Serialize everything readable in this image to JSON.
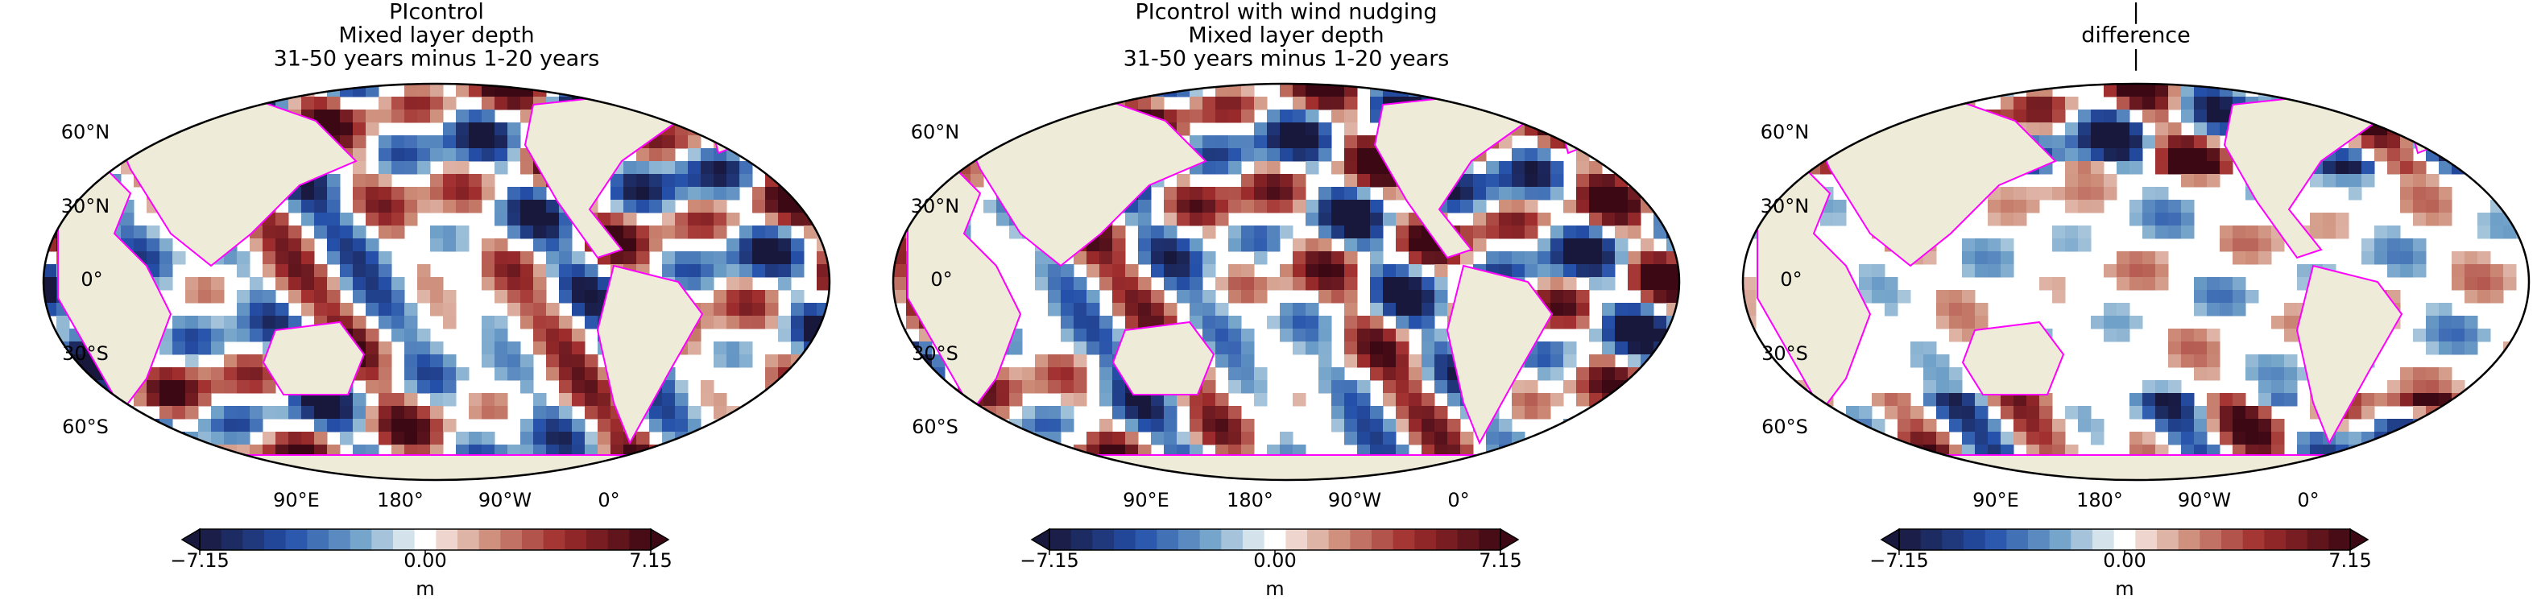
{
  "panels": [
    {
      "title": [
        "PIcontrol",
        "Mixed layer depth",
        "31-50 years minus 1-20 years"
      ]
    },
    {
      "title": [
        "PIcontrol with wind nudging",
        "Mixed layer depth",
        "31-50 years minus 1-20 years"
      ]
    },
    {
      "title": [
        "|",
        "difference",
        "|"
      ]
    }
  ],
  "lat_labels": [
    "60°N",
    "30°N",
    "0°",
    "30°S",
    "60°S"
  ],
  "lon_labels": [
    "90°E",
    "180°",
    "90°W",
    "0°"
  ],
  "colorbar": {
    "clim": [
      -7.15,
      7.15
    ],
    "ticks": [
      {
        "value": -7.15,
        "label": "−7.15"
      },
      {
        "value": 0,
        "label": "0.00"
      },
      {
        "value": 7.15,
        "label": "7.15"
      }
    ],
    "unit": "m"
  }
}
